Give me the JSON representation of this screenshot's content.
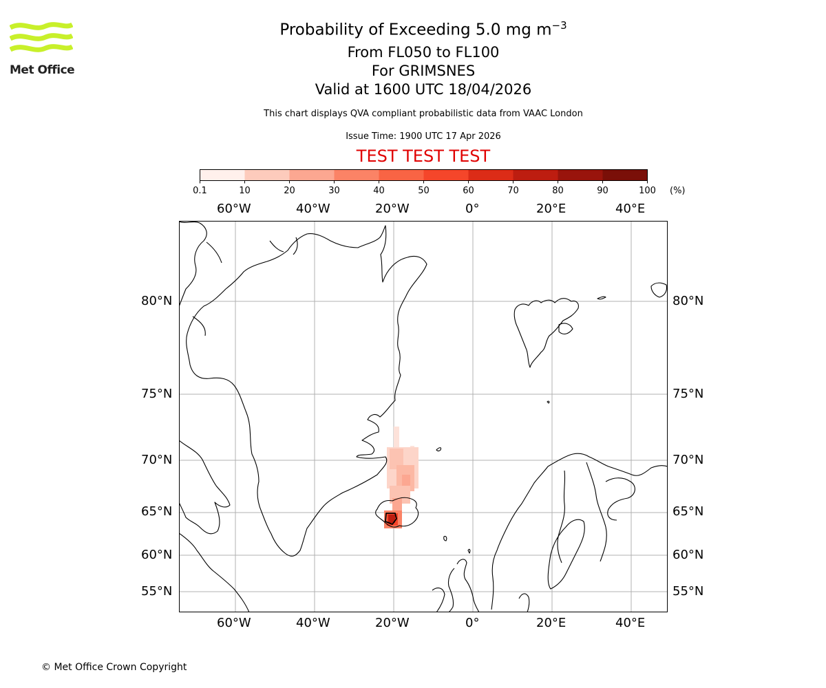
{
  "logo": {
    "text": "Met Office",
    "color": "#c8f02a"
  },
  "title": {
    "main": "Probability of Exceeding 5.0 mg m",
    "superscript": "−3",
    "levels": "From FL050 to FL100",
    "location": "For GRIMSNES",
    "valid": "Valid at 1600 UTC 18/04/2026"
  },
  "info": {
    "compliance": "This chart displays QVA compliant probabilistic data from VAAC London",
    "issue_time": "Issue Time: 1900 UTC 17 Apr 2026",
    "test_banner": "TEST TEST TEST",
    "test_color": "#e00000"
  },
  "colorbar": {
    "ticks": [
      "0.1",
      "10",
      "20",
      "30",
      "40",
      "50",
      "60",
      "70",
      "80",
      "90",
      "100"
    ],
    "unit": "(%)",
    "colors": [
      "#fff0ec",
      "#fdcbbc",
      "#fca791",
      "#fb8366",
      "#f96444",
      "#f5462a",
      "#dc2c17",
      "#bd1d10",
      "#99140c",
      "#7a0f08"
    ]
  },
  "map": {
    "lon_labels": [
      "60°W",
      "40°W",
      "20°W",
      "0°",
      "20°E",
      "40°E"
    ],
    "lat_labels": [
      "80°N",
      "75°N",
      "70°N",
      "65°N",
      "60°N",
      "55°N"
    ],
    "volcano": "GRIMSNES"
  },
  "copyright": "© Met Office Crown Copyright"
}
